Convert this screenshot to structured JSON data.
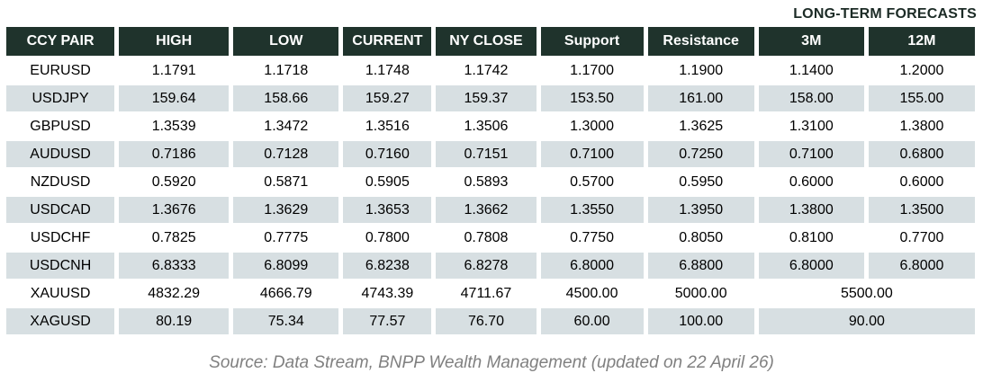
{
  "header_label": "LONG-TERM FORECASTS",
  "table": {
    "columns": [
      "CCY PAIR",
      "HIGH",
      "LOW",
      "CURRENT",
      "NY CLOSE",
      "Support",
      "Resistance",
      "3M",
      "12M"
    ],
    "rows": [
      {
        "pair": "EURUSD",
        "values": [
          "1.1791",
          "1.1718",
          "1.1748",
          "1.1742",
          "1.1700",
          "1.1900",
          "1.1400",
          "1.2000"
        ],
        "forecast_merged": null
      },
      {
        "pair": "USDJPY",
        "values": [
          "159.64",
          "158.66",
          "159.27",
          "159.37",
          "153.50",
          "161.00",
          "158.00",
          "155.00"
        ],
        "forecast_merged": null
      },
      {
        "pair": "GBPUSD",
        "values": [
          "1.3539",
          "1.3472",
          "1.3516",
          "1.3506",
          "1.3000",
          "1.3625",
          "1.3100",
          "1.3800"
        ],
        "forecast_merged": null
      },
      {
        "pair": "AUDUSD",
        "values": [
          "0.7186",
          "0.7128",
          "0.7160",
          "0.7151",
          "0.7100",
          "0.7250",
          "0.7100",
          "0.6800"
        ],
        "forecast_merged": null
      },
      {
        "pair": "NZDUSD",
        "values": [
          "0.5920",
          "0.5871",
          "0.5905",
          "0.5893",
          "0.5700",
          "0.5950",
          "0.6000",
          "0.6000"
        ],
        "forecast_merged": null
      },
      {
        "pair": "USDCAD",
        "values": [
          "1.3676",
          "1.3629",
          "1.3653",
          "1.3662",
          "1.3550",
          "1.3950",
          "1.3800",
          "1.3500"
        ],
        "forecast_merged": null
      },
      {
        "pair": "USDCHF",
        "values": [
          "0.7825",
          "0.7775",
          "0.7800",
          "0.7808",
          "0.7750",
          "0.8050",
          "0.8100",
          "0.7700"
        ],
        "forecast_merged": null
      },
      {
        "pair": "USDCNH",
        "values": [
          "6.8333",
          "6.8099",
          "6.8238",
          "6.8278",
          "6.8000",
          "6.8800",
          "6.8000",
          "6.8000"
        ],
        "forecast_merged": null
      },
      {
        "pair": "XAUUSD",
        "values": [
          "4832.29",
          "4666.79",
          "4743.39",
          "4711.67",
          "4500.00",
          "5000.00"
        ],
        "forecast_merged": "5500.00"
      },
      {
        "pair": "XAGUSD",
        "values": [
          "80.19",
          "75.34",
          "77.57",
          "76.70",
          "60.00",
          "100.00"
        ],
        "forecast_merged": "90.00"
      }
    ]
  },
  "source": "Source: Data Stream, BNPP Wealth Management (updated on 22 April 26)",
  "colors": {
    "header_background": "#1f332c",
    "header_text": "#ffffff",
    "stripe_row_background": "#d7dfe2",
    "plain_row_background": "#ffffff",
    "body_text": "#000000",
    "forecast_label_text": "#1c2b26",
    "source_text": "#808080"
  }
}
